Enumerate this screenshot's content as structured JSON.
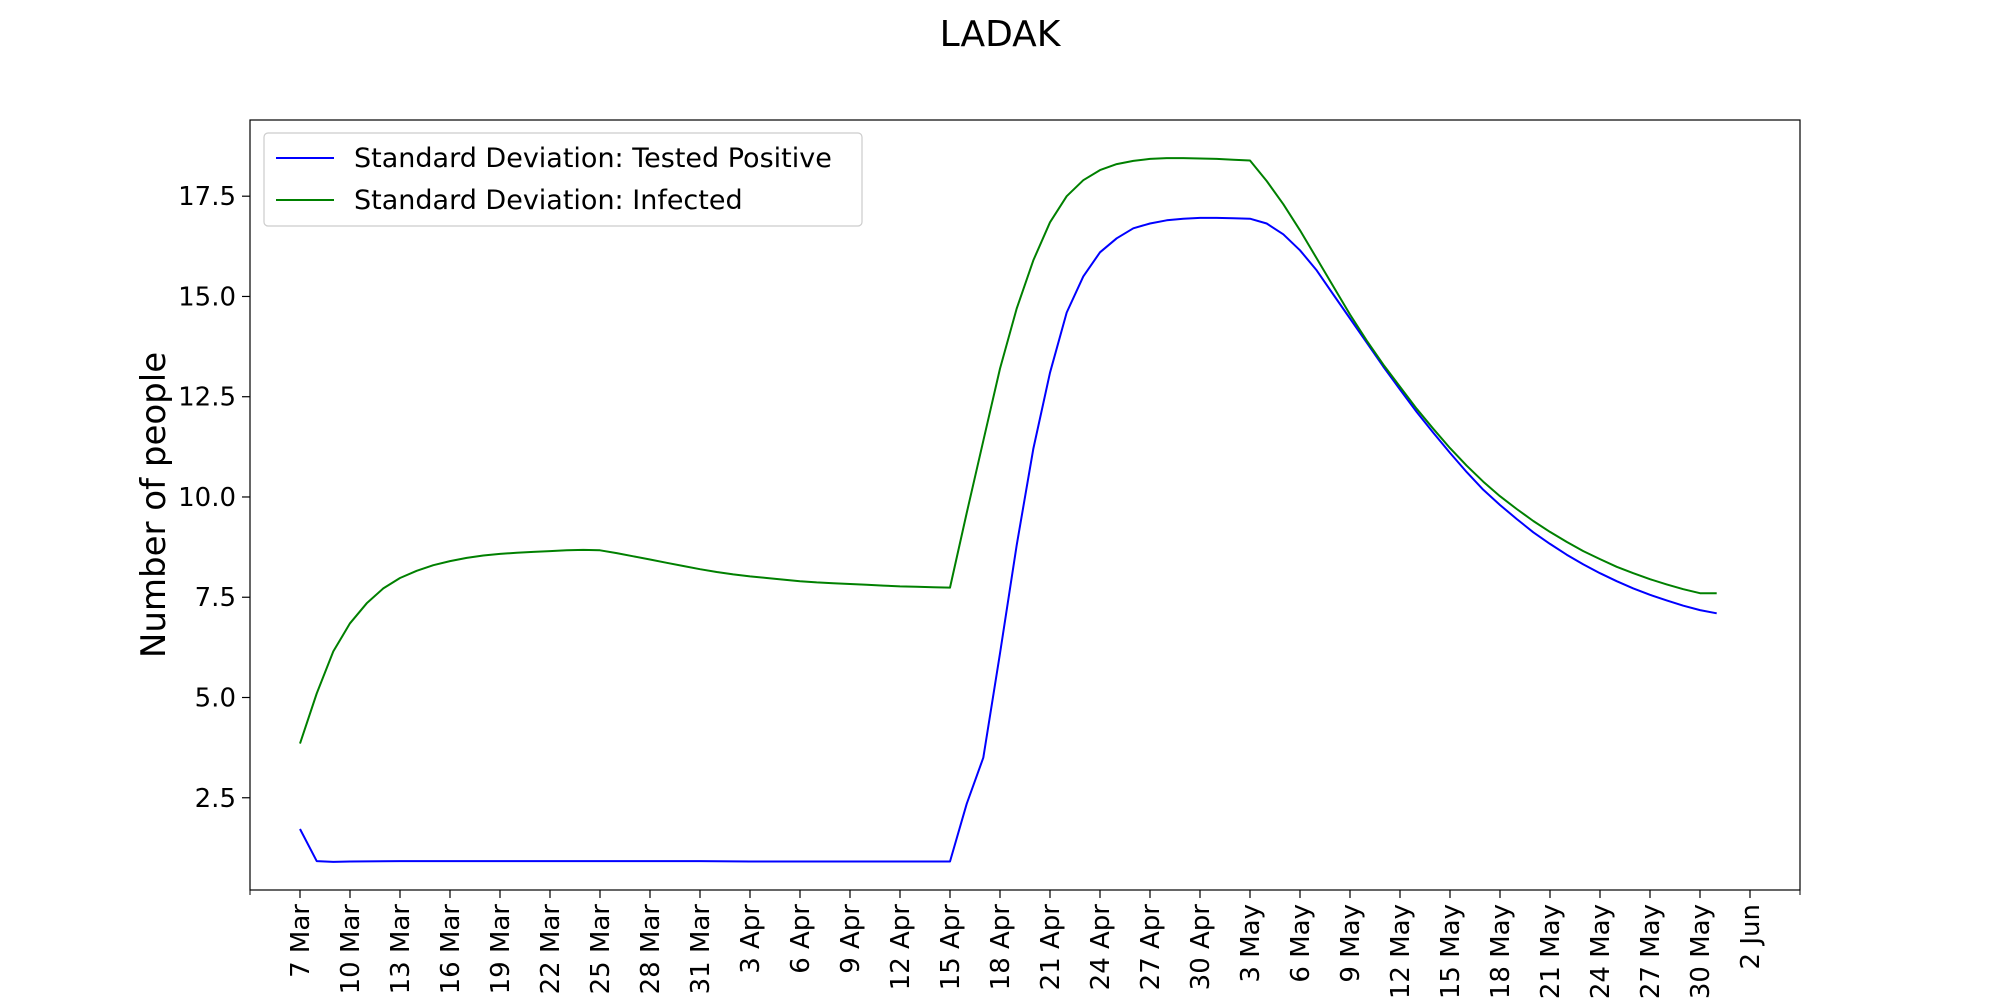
{
  "chart_data": {
    "type": "line",
    "title": "LADAK",
    "xlabel": "",
    "ylabel": "Number of people",
    "ylim": [
      0.2,
      19.4
    ],
    "xlim": [
      "2020-03-04",
      "2020-06-05"
    ],
    "x_ticks": [
      {
        "date": "2020-03-07",
        "label": "7 Mar"
      },
      {
        "date": "2020-03-10",
        "label": "10 Mar"
      },
      {
        "date": "2020-03-13",
        "label": "13 Mar"
      },
      {
        "date": "2020-03-16",
        "label": "16 Mar"
      },
      {
        "date": "2020-03-19",
        "label": "19 Mar"
      },
      {
        "date": "2020-03-22",
        "label": "22 Mar"
      },
      {
        "date": "2020-03-25",
        "label": "25 Mar"
      },
      {
        "date": "2020-03-28",
        "label": "28 Mar"
      },
      {
        "date": "2020-03-31",
        "label": "31 Mar"
      },
      {
        "date": "2020-04-03",
        "label": "3 Apr"
      },
      {
        "date": "2020-04-06",
        "label": "6 Apr"
      },
      {
        "date": "2020-04-09",
        "label": "9 Apr"
      },
      {
        "date": "2020-04-12",
        "label": "12 Apr"
      },
      {
        "date": "2020-04-15",
        "label": "15 Apr"
      },
      {
        "date": "2020-04-18",
        "label": "18 Apr"
      },
      {
        "date": "2020-04-21",
        "label": "21 Apr"
      },
      {
        "date": "2020-04-24",
        "label": "24 Apr"
      },
      {
        "date": "2020-04-27",
        "label": "27 Apr"
      },
      {
        "date": "2020-04-30",
        "label": "30 Apr"
      },
      {
        "date": "2020-05-03",
        "label": "3 May"
      },
      {
        "date": "2020-05-06",
        "label": "6 May"
      },
      {
        "date": "2020-05-09",
        "label": "9 May"
      },
      {
        "date": "2020-05-12",
        "label": "12 May"
      },
      {
        "date": "2020-05-15",
        "label": "15 May"
      },
      {
        "date": "2020-05-18",
        "label": "18 May"
      },
      {
        "date": "2020-05-21",
        "label": "21 May"
      },
      {
        "date": "2020-05-24",
        "label": "24 May"
      },
      {
        "date": "2020-05-27",
        "label": "27 May"
      },
      {
        "date": "2020-05-30",
        "label": "30 May"
      },
      {
        "date": "2020-06-02",
        "label": "2 Jun"
      }
    ],
    "y_ticks": [
      {
        "value": 2.5,
        "label": "2.5"
      },
      {
        "value": 5.0,
        "label": "5.0"
      },
      {
        "value": 7.5,
        "label": "7.5"
      },
      {
        "value": 10.0,
        "label": "10.0"
      },
      {
        "value": 12.5,
        "label": "12.5"
      },
      {
        "value": 15.0,
        "label": "15.0"
      },
      {
        "value": 17.5,
        "label": "17.5"
      }
    ],
    "grid": false,
    "legend_position": "top-left",
    "series": [
      {
        "name": "Standard Deviation: Tested Positive",
        "color": "#0000ff",
        "points": [
          [
            "2020-03-07",
            1.72
          ],
          [
            "2020-03-08",
            0.92
          ],
          [
            "2020-03-09",
            0.9
          ],
          [
            "2020-03-10",
            0.91
          ],
          [
            "2020-03-13",
            0.92
          ],
          [
            "2020-03-16",
            0.92
          ],
          [
            "2020-03-19",
            0.92
          ],
          [
            "2020-03-22",
            0.92
          ],
          [
            "2020-03-25",
            0.92
          ],
          [
            "2020-03-28",
            0.92
          ],
          [
            "2020-03-31",
            0.92
          ],
          [
            "2020-04-03",
            0.91
          ],
          [
            "2020-04-06",
            0.91
          ],
          [
            "2020-04-09",
            0.91
          ],
          [
            "2020-04-12",
            0.91
          ],
          [
            "2020-04-15",
            0.91
          ],
          [
            "2020-04-16",
            2.35
          ],
          [
            "2020-04-17",
            3.5
          ],
          [
            "2020-04-18",
            6.1
          ],
          [
            "2020-04-19",
            8.8
          ],
          [
            "2020-04-20",
            11.2
          ],
          [
            "2020-04-21",
            13.1
          ],
          [
            "2020-04-22",
            14.6
          ],
          [
            "2020-04-23",
            15.5
          ],
          [
            "2020-04-24",
            16.1
          ],
          [
            "2020-04-25",
            16.45
          ],
          [
            "2020-04-26",
            16.7
          ],
          [
            "2020-04-27",
            16.82
          ],
          [
            "2020-04-28",
            16.9
          ],
          [
            "2020-04-29",
            16.94
          ],
          [
            "2020-04-30",
            16.96
          ],
          [
            "2020-05-01",
            16.96
          ],
          [
            "2020-05-02",
            16.95
          ],
          [
            "2020-05-03",
            16.94
          ],
          [
            "2020-05-04",
            16.82
          ],
          [
            "2020-05-05",
            16.55
          ],
          [
            "2020-05-06",
            16.15
          ],
          [
            "2020-05-07",
            15.65
          ],
          [
            "2020-05-08",
            15.05
          ],
          [
            "2020-05-09",
            14.45
          ],
          [
            "2020-05-10",
            13.85
          ],
          [
            "2020-05-11",
            13.25
          ],
          [
            "2020-05-12",
            12.68
          ],
          [
            "2020-05-13",
            12.12
          ],
          [
            "2020-05-14",
            11.6
          ],
          [
            "2020-05-15",
            11.1
          ],
          [
            "2020-05-16",
            10.62
          ],
          [
            "2020-05-17",
            10.18
          ],
          [
            "2020-05-18",
            9.8
          ],
          [
            "2020-05-19",
            9.45
          ],
          [
            "2020-05-20",
            9.12
          ],
          [
            "2020-05-21",
            8.83
          ],
          [
            "2020-05-22",
            8.56
          ],
          [
            "2020-05-23",
            8.32
          ],
          [
            "2020-05-24",
            8.1
          ],
          [
            "2020-05-25",
            7.9
          ],
          [
            "2020-05-26",
            7.72
          ],
          [
            "2020-05-27",
            7.56
          ],
          [
            "2020-05-28",
            7.42
          ],
          [
            "2020-05-29",
            7.29
          ],
          [
            "2020-05-30",
            7.18
          ],
          [
            "2020-05-31",
            7.1
          ]
        ]
      },
      {
        "name": "Standard Deviation: Infected",
        "color": "#008000",
        "points": [
          [
            "2020-03-07",
            3.85
          ],
          [
            "2020-03-08",
            5.1
          ],
          [
            "2020-03-09",
            6.15
          ],
          [
            "2020-03-10",
            6.85
          ],
          [
            "2020-03-11",
            7.35
          ],
          [
            "2020-03-12",
            7.72
          ],
          [
            "2020-03-13",
            7.98
          ],
          [
            "2020-03-14",
            8.16
          ],
          [
            "2020-03-15",
            8.3
          ],
          [
            "2020-03-16",
            8.4
          ],
          [
            "2020-03-17",
            8.48
          ],
          [
            "2020-03-18",
            8.54
          ],
          [
            "2020-03-19",
            8.58
          ],
          [
            "2020-03-20",
            8.61
          ],
          [
            "2020-03-21",
            8.63
          ],
          [
            "2020-03-22",
            8.65
          ],
          [
            "2020-03-23",
            8.67
          ],
          [
            "2020-03-24",
            8.68
          ],
          [
            "2020-03-25",
            8.67
          ],
          [
            "2020-03-26",
            8.6
          ],
          [
            "2020-03-27",
            8.52
          ],
          [
            "2020-03-28",
            8.44
          ],
          [
            "2020-03-29",
            8.36
          ],
          [
            "2020-03-30",
            8.28
          ],
          [
            "2020-03-31",
            8.2
          ],
          [
            "2020-04-01",
            8.13
          ],
          [
            "2020-04-02",
            8.07
          ],
          [
            "2020-04-03",
            8.02
          ],
          [
            "2020-04-04",
            7.98
          ],
          [
            "2020-04-05",
            7.94
          ],
          [
            "2020-04-06",
            7.9
          ],
          [
            "2020-04-07",
            7.87
          ],
          [
            "2020-04-08",
            7.85
          ],
          [
            "2020-04-09",
            7.83
          ],
          [
            "2020-04-10",
            7.81
          ],
          [
            "2020-04-11",
            7.79
          ],
          [
            "2020-04-12",
            7.77
          ],
          [
            "2020-04-13",
            7.76
          ],
          [
            "2020-04-14",
            7.75
          ],
          [
            "2020-04-15",
            7.74
          ],
          [
            "2020-04-16",
            9.6
          ],
          [
            "2020-04-17",
            11.4
          ],
          [
            "2020-04-18",
            13.2
          ],
          [
            "2020-04-19",
            14.7
          ],
          [
            "2020-04-20",
            15.9
          ],
          [
            "2020-04-21",
            16.85
          ],
          [
            "2020-04-22",
            17.5
          ],
          [
            "2020-04-23",
            17.9
          ],
          [
            "2020-04-24",
            18.15
          ],
          [
            "2020-04-25",
            18.3
          ],
          [
            "2020-04-26",
            18.38
          ],
          [
            "2020-04-27",
            18.43
          ],
          [
            "2020-04-28",
            18.45
          ],
          [
            "2020-04-29",
            18.45
          ],
          [
            "2020-04-30",
            18.44
          ],
          [
            "2020-05-01",
            18.43
          ],
          [
            "2020-05-02",
            18.41
          ],
          [
            "2020-05-03",
            18.39
          ],
          [
            "2020-05-04",
            17.88
          ],
          [
            "2020-05-05",
            17.3
          ],
          [
            "2020-05-06",
            16.65
          ],
          [
            "2020-05-07",
            15.95
          ],
          [
            "2020-05-08",
            15.25
          ],
          [
            "2020-05-09",
            14.55
          ],
          [
            "2020-05-10",
            13.9
          ],
          [
            "2020-05-11",
            13.3
          ],
          [
            "2020-05-12",
            12.75
          ],
          [
            "2020-05-13",
            12.2
          ],
          [
            "2020-05-14",
            11.7
          ],
          [
            "2020-05-15",
            11.22
          ],
          [
            "2020-05-16",
            10.78
          ],
          [
            "2020-05-17",
            10.38
          ],
          [
            "2020-05-18",
            10.02
          ],
          [
            "2020-05-19",
            9.7
          ],
          [
            "2020-05-20",
            9.4
          ],
          [
            "2020-05-21",
            9.13
          ],
          [
            "2020-05-22",
            8.88
          ],
          [
            "2020-05-23",
            8.65
          ],
          [
            "2020-05-24",
            8.45
          ],
          [
            "2020-05-25",
            8.26
          ],
          [
            "2020-05-26",
            8.1
          ],
          [
            "2020-05-27",
            7.95
          ],
          [
            "2020-05-28",
            7.82
          ],
          [
            "2020-05-29",
            7.7
          ],
          [
            "2020-05-30",
            7.6
          ],
          [
            "2020-05-31",
            7.6
          ]
        ]
      }
    ]
  }
}
